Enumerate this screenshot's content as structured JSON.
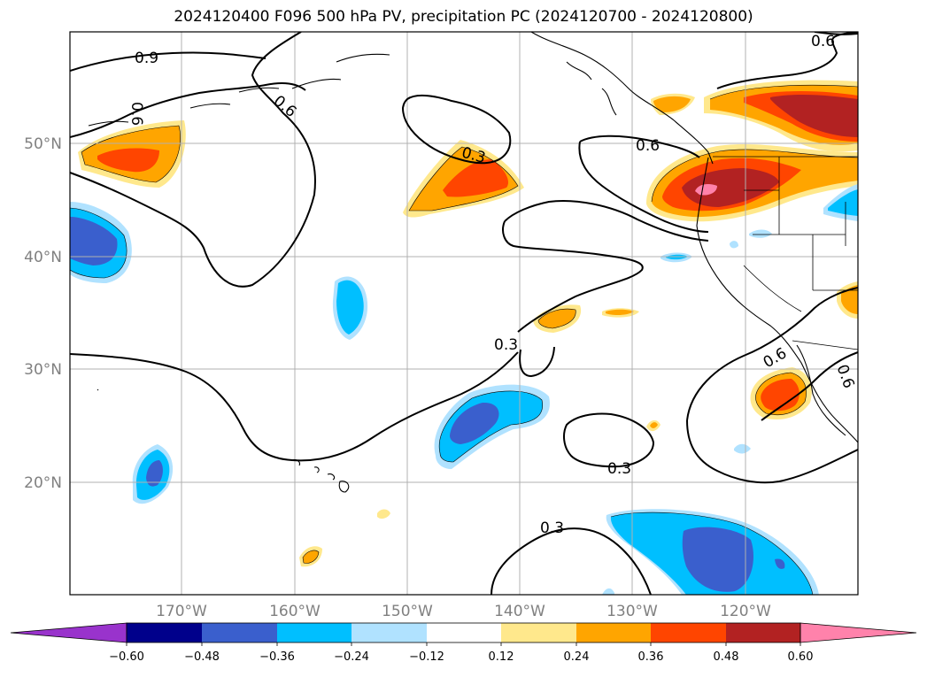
{
  "title": "2024120400 F096 500 hPa PV, precipitation PC (2024120700 - 2024120800)",
  "map": {
    "lon_labels": [
      "170°W",
      "160°W",
      "150°W",
      "140°W",
      "130°W",
      "120°W"
    ],
    "lat_labels": [
      "50°N",
      "40°N",
      "30°N",
      "20°N"
    ],
    "contour_labels": [
      "0.9",
      "0.6",
      "0.6",
      "0.6",
      "0.6",
      "0.3",
      "0.3",
      "0.3",
      "0.3",
      "0.6",
      "0.6"
    ]
  },
  "colorbar": {
    "ticks": [
      "−0.60",
      "−0.48",
      "−0.36",
      "−0.24",
      "−0.12",
      "0.12",
      "0.24",
      "0.36",
      "0.48",
      "0.60"
    ],
    "colors": [
      "#9933cc",
      "#00008b",
      "#3a5fcd",
      "#00bfff",
      "#b0e2ff",
      "#ffffff",
      "#ffe88c",
      "#ffa500",
      "#ff4500",
      "#b22222",
      "#ff82ab"
    ]
  },
  "colors": {
    "pos_light": "#ffe88c",
    "pos_orange": "#ffa500",
    "pos_red": "#ff4500",
    "pos_dark": "#b22222",
    "pos_pink": "#ff82ab",
    "neg_light": "#b0e2ff",
    "neg_cyan": "#00bfff",
    "neg_blue": "#3a5fcd"
  }
}
